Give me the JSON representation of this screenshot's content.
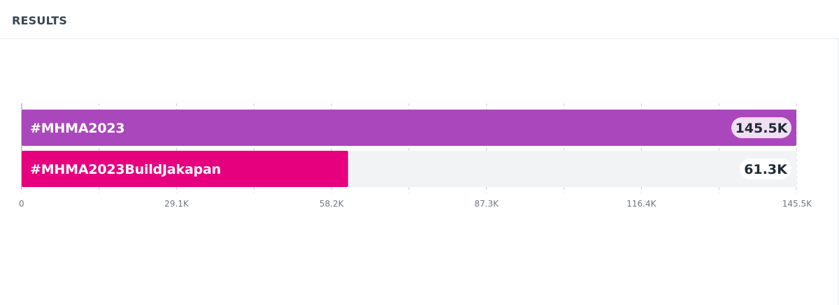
{
  "header": {
    "title": "RESULTS"
  },
  "chart_data": {
    "type": "bar",
    "orientation": "horizontal",
    "categories": [
      "#MHMA2023",
      "#MHMA2023BuildJakapan"
    ],
    "values": [
      145500,
      61300
    ],
    "value_labels": [
      "145.5K",
      "61.3K"
    ],
    "colors": [
      "#ab47bc",
      "#e6007e"
    ],
    "xlim": [
      0,
      145500
    ],
    "xticks": [
      0,
      29100,
      58200,
      87300,
      116400,
      145500
    ],
    "xtick_labels": [
      "0",
      "29.1K",
      "58.2K",
      "87.3K",
      "116.4K",
      "145.5K"
    ],
    "grid": true,
    "title": "",
    "xlabel": "",
    "ylabel": ""
  }
}
